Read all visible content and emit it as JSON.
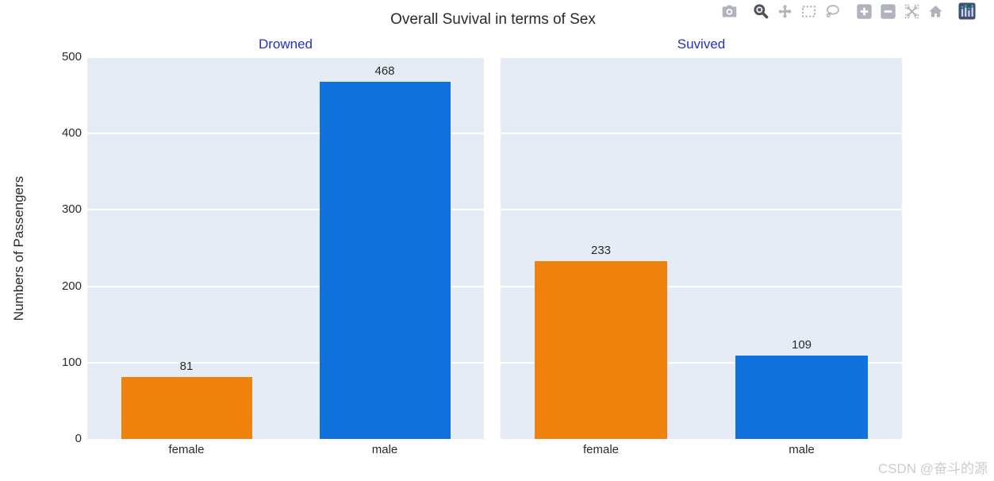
{
  "watermark": "CSDN @奋斗的源",
  "modebar": {
    "icons": [
      "camera-icon",
      "zoom-icon",
      "pan-icon",
      "box-select-icon",
      "lasso-select-icon",
      "zoom-in-icon",
      "zoom-out-icon",
      "autoscale-icon",
      "reset-axes-home-icon",
      "plotly-logo-icon"
    ],
    "active_icon": "zoom-icon"
  },
  "colors": {
    "female_bar": "#EF820D",
    "male_bar": "#1172DE",
    "plot_background": "#E5ECF6",
    "gridline": "#FFFFFF",
    "subplot_title": "#2331C4",
    "text": "#2a2a2a",
    "modebar_icon": "#AFB4BC",
    "modebar_icon_active": "#4D545F",
    "plotly_logo_bg": "#3F4F75",
    "watermark": "#CCCCCC"
  },
  "chart_data": {
    "type": "bar",
    "title": "Overall Suvival in terms of Sex",
    "ylabel": "Numbers of Passengers",
    "xlabel": "",
    "ylim": [
      0,
      500
    ],
    "yticks": [
      0,
      100,
      200,
      300,
      400,
      500
    ],
    "grid": true,
    "legend": false,
    "categories": [
      "female",
      "male"
    ],
    "bar_colors": [
      "#EF820D",
      "#1172DE"
    ],
    "subplots": [
      {
        "title": "Drowned",
        "values": [
          81,
          468
        ]
      },
      {
        "title": "Suvived",
        "values": [
          233,
          109
        ]
      }
    ]
  }
}
